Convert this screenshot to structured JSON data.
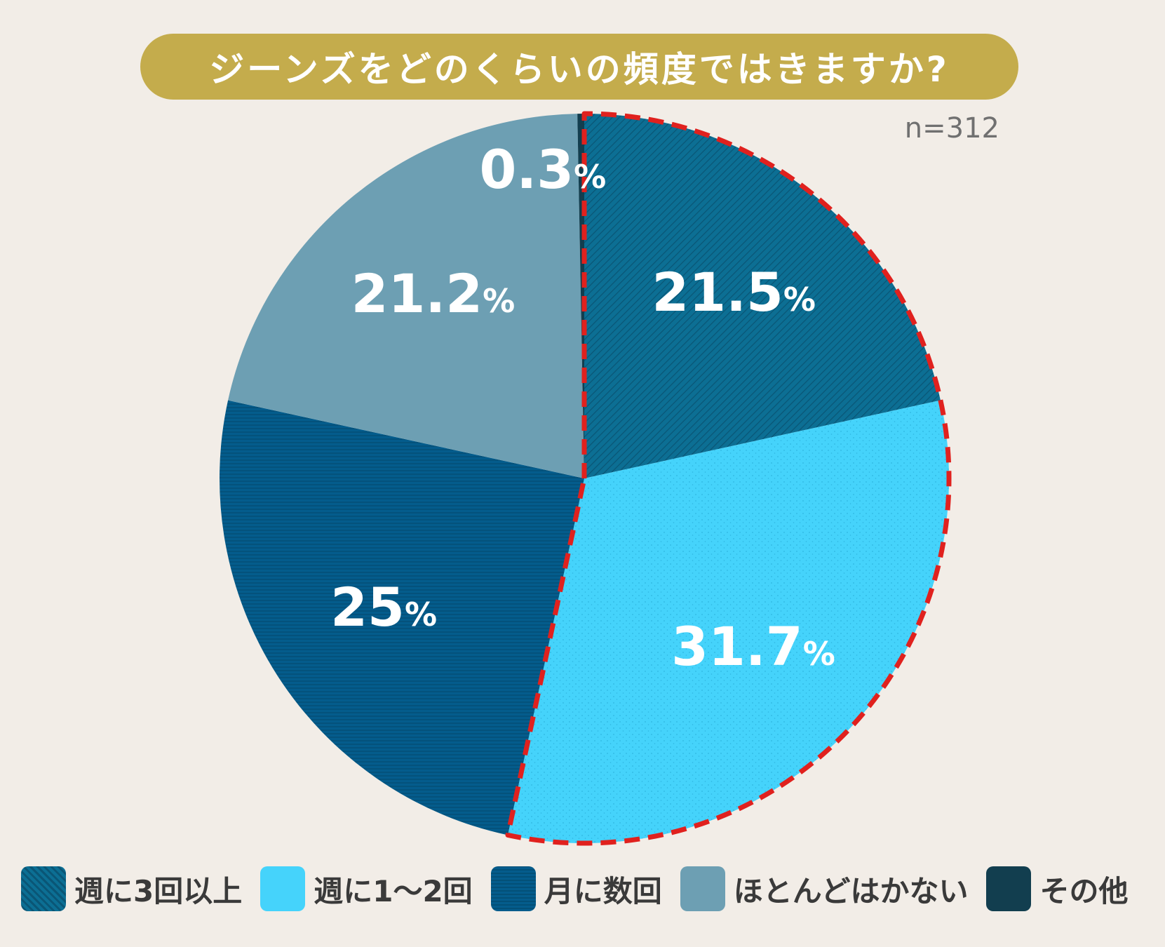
{
  "title": "ジーンズをどのくらいの頻度ではきますか?",
  "sample_size": "n=312",
  "colors": {
    "background": "#f2ede7",
    "title_bg": "#c4ac4c",
    "highlight_border": "#e0211e"
  },
  "chart_data": {
    "type": "pie",
    "title": "ジーンズをどのくらいの頻度ではきますか?",
    "start": "12 o'clock, clockwise",
    "series": [
      {
        "name": "週に3回以上",
        "value": 21.5,
        "label": "21.5",
        "color": "#0c6f94",
        "pattern": "diagonal-hatch",
        "highlighted": true
      },
      {
        "name": "週に1～2回",
        "value": 31.7,
        "label": "31.7",
        "color": "#45d3fb",
        "pattern": "dots",
        "highlighted": true
      },
      {
        "name": "月に数回",
        "value": 25,
        "label": "25",
        "color": "#045c8c",
        "pattern": "horizontal-lines",
        "highlighted": false
      },
      {
        "name": "ほとんどはかない",
        "value": 21.2,
        "label": "21.2",
        "color": "#6d9fb3",
        "pattern": "none",
        "highlighted": false
      },
      {
        "name": "その他",
        "value": 0.3,
        "label": "0.3",
        "color": "#123e4f",
        "pattern": "none",
        "highlighted": false
      }
    ],
    "unit": "%",
    "legend_position": "bottom"
  }
}
